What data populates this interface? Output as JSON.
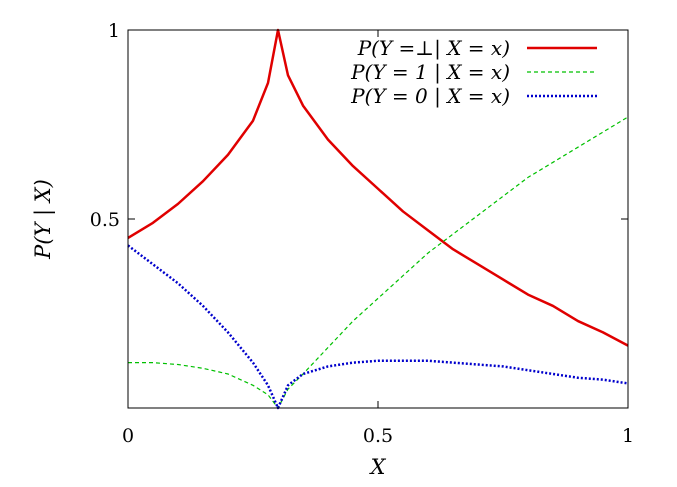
{
  "chart_data": {
    "type": "line",
    "title": "",
    "xlabel": "X",
    "ylabel": "P(Y | X)",
    "xlim": [
      0,
      1
    ],
    "ylim": [
      0,
      1
    ],
    "grid": false,
    "legend_position": "top-right",
    "x_ticks": [
      {
        "value": 0,
        "label": "0"
      },
      {
        "value": 0.5,
        "label": "0.5"
      },
      {
        "value": 1,
        "label": "1"
      }
    ],
    "y_ticks": [
      {
        "value": 0.5,
        "label": "0.5"
      },
      {
        "value": 1,
        "label": "1"
      }
    ],
    "series": [
      {
        "name": "P(Y =⊥| X = x)",
        "color": "#e00000",
        "style": "solid",
        "x": [
          0,
          0.05,
          0.1,
          0.15,
          0.2,
          0.25,
          0.28,
          0.3,
          0.32,
          0.35,
          0.4,
          0.45,
          0.5,
          0.55,
          0.6,
          0.65,
          0.7,
          0.75,
          0.8,
          0.85,
          0.9,
          0.95,
          1.0
        ],
        "y": [
          0.45,
          0.49,
          0.54,
          0.6,
          0.67,
          0.76,
          0.86,
          1.0,
          0.88,
          0.8,
          0.71,
          0.64,
          0.58,
          0.52,
          0.47,
          0.42,
          0.38,
          0.34,
          0.3,
          0.27,
          0.23,
          0.2,
          0.165
        ]
      },
      {
        "name": "P(Y = 1 | X = x)",
        "color": "#00c000",
        "style": "dashed",
        "x": [
          0,
          0.05,
          0.1,
          0.15,
          0.2,
          0.25,
          0.28,
          0.3,
          0.32,
          0.35,
          0.4,
          0.45,
          0.5,
          0.55,
          0.6,
          0.65,
          0.7,
          0.75,
          0.8,
          0.85,
          0.9,
          0.95,
          1.0
        ],
        "y": [
          0.12,
          0.12,
          0.115,
          0.105,
          0.09,
          0.06,
          0.035,
          0.0,
          0.05,
          0.09,
          0.16,
          0.23,
          0.29,
          0.35,
          0.41,
          0.46,
          0.51,
          0.56,
          0.61,
          0.65,
          0.69,
          0.73,
          0.77
        ]
      },
      {
        "name": "P(Y = 0 | X = x)",
        "color": "#0000cc",
        "style": "dotted",
        "x": [
          0,
          0.05,
          0.1,
          0.15,
          0.2,
          0.25,
          0.28,
          0.3,
          0.32,
          0.35,
          0.4,
          0.45,
          0.5,
          0.55,
          0.6,
          0.65,
          0.7,
          0.75,
          0.8,
          0.85,
          0.9,
          0.95,
          1.0
        ],
        "y": [
          0.43,
          0.38,
          0.33,
          0.27,
          0.2,
          0.12,
          0.06,
          0.0,
          0.06,
          0.09,
          0.11,
          0.12,
          0.125,
          0.125,
          0.125,
          0.12,
          0.115,
          0.11,
          0.1,
          0.09,
          0.08,
          0.075,
          0.065
        ]
      }
    ]
  }
}
